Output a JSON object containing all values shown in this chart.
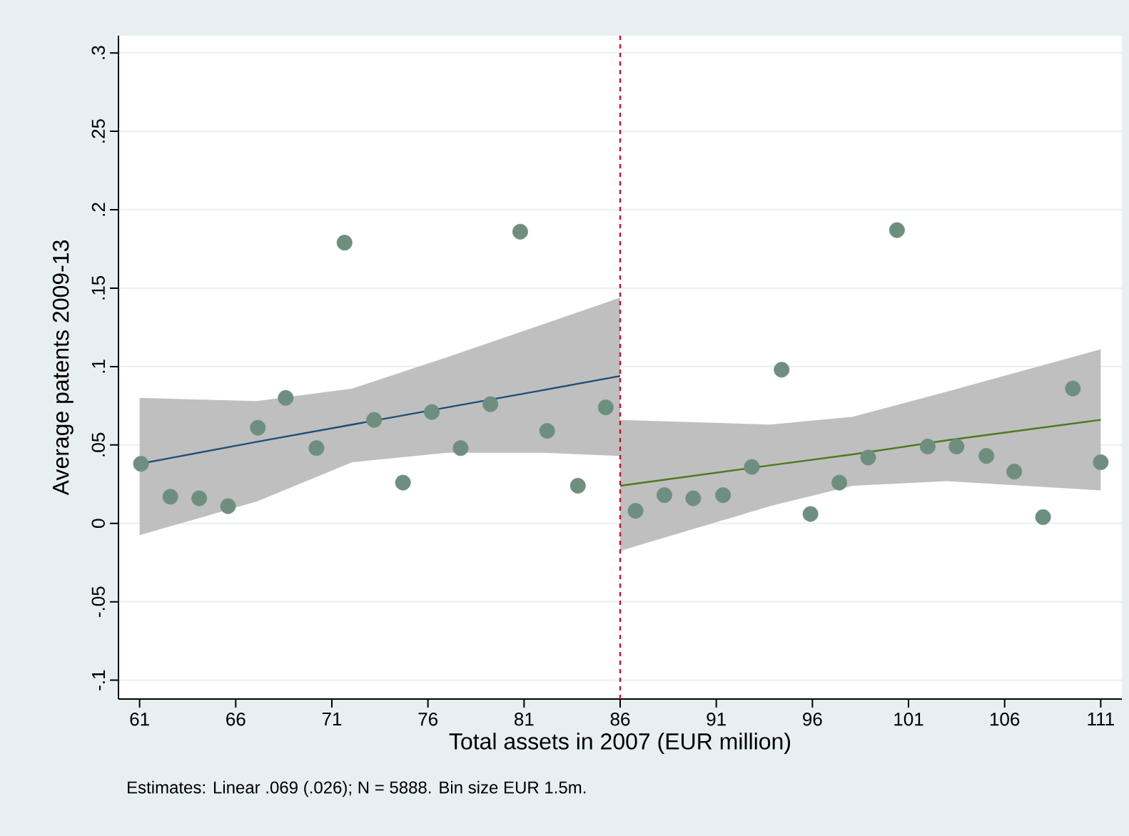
{
  "chart_data": {
    "type": "scatter",
    "xlabel": "Total assets in 2007 (EUR million)",
    "ylabel": "Average patents 2009-13",
    "annotations": [
      "Estimates: Linear .069 (.026); N = 5888. Bin size EUR 1.5m."
    ],
    "xlim": [
      59.9,
      112.1
    ],
    "ylim": [
      -0.112,
      0.311
    ],
    "xticks": [
      61,
      66,
      71,
      76,
      81,
      86,
      91,
      96,
      101,
      106,
      111
    ],
    "yticks": [
      {
        "value": -0.1,
        "label": "-.1"
      },
      {
        "value": -0.05,
        "label": "-.05"
      },
      {
        "value": 0,
        "label": "0"
      },
      {
        "value": 0.05,
        "label": ".05"
      },
      {
        "value": 0.1,
        "label": ".1"
      },
      {
        "value": 0.15,
        "label": ".15"
      },
      {
        "value": 0.2,
        "label": ".2"
      },
      {
        "value": 0.25,
        "label": ".25"
      },
      {
        "value": 0.3,
        "label": ".3"
      }
    ],
    "grid": "y",
    "ref_lines": [
      {
        "axis": "x",
        "value": 86,
        "label": null,
        "color": "#c8102e",
        "line_style": "dashed"
      }
    ],
    "series": [
      {
        "type": "line",
        "color": "#1f4e79",
        "marker": "none",
        "x": [
          61,
          67.1,
          72.06,
          77,
          82,
          86
        ],
        "values": [
          0.038,
          0.052,
          0.063,
          0.074,
          0.085,
          0.094
        ],
        "lower": [
          -0.0075,
          0.014,
          0.039,
          0.045,
          0.045,
          0.043
        ],
        "upper": [
          0.08,
          0.078,
          0.086,
          0.106,
          0.127,
          0.144
        ]
      },
      {
        "type": "line",
        "color": "#4e7a1e",
        "marker": "none",
        "x": [
          86,
          93.8,
          98.1,
          103,
          111
        ],
        "values": [
          0.024,
          0.037,
          0.044,
          0.053,
          0.066
        ],
        "lower": [
          -0.0175,
          0.011,
          0.024,
          0.027,
          0.021
        ],
        "upper": [
          0.066,
          0.063,
          0.068,
          0.084,
          0.111
        ]
      },
      {
        "color": "#6e8f80",
        "marker": "circle",
        "x": [
          61.07,
          62.6,
          64.1,
          65.6,
          67.15,
          68.6,
          70.2,
          71.66,
          73.2,
          74.7,
          76.2,
          77.7,
          79.25,
          80.8,
          82.2,
          83.8,
          85.25,
          86.8,
          88.3,
          89.8,
          91.35,
          92.85,
          94.4,
          95.9,
          97.4,
          98.9,
          100.4,
          102.0,
          103.5,
          105.05,
          106.5,
          108.0,
          109.55,
          111.0
        ],
        "values": [
          0.038,
          0.017,
          0.016,
          0.011,
          0.061,
          0.08,
          0.048,
          0.179,
          0.066,
          0.026,
          0.071,
          0.048,
          0.076,
          0.186,
          0.059,
          0.024,
          0.074,
          0.008,
          0.018,
          0.016,
          0.018,
          0.036,
          0.098,
          0.006,
          0.026,
          0.042,
          0.187,
          0.049,
          0.049,
          0.043,
          0.033,
          0.004,
          0.086,
          0.039
        ]
      }
    ]
  }
}
